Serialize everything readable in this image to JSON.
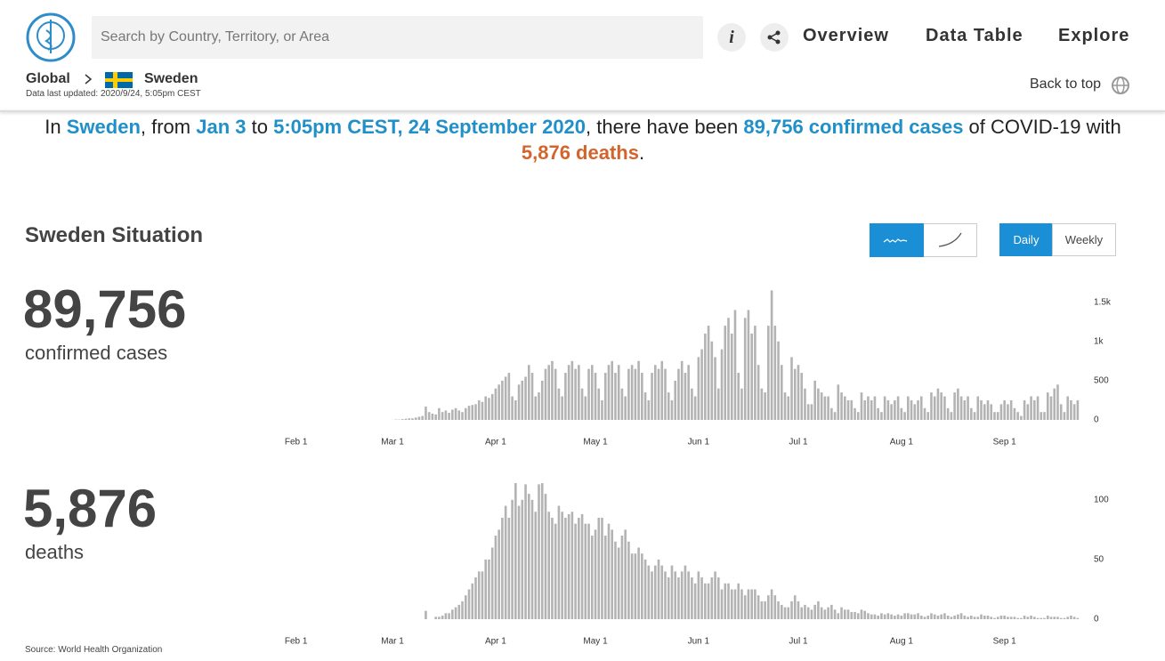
{
  "header": {
    "search_placeholder": "Search by Country, Territory, or Area",
    "nav": [
      "Overview",
      "Data Table",
      "Explore"
    ],
    "breadcrumb": [
      "Global",
      "Sweden"
    ],
    "updated": "Data last updated: 2020/9/24, 5:05pm CEST",
    "back_to_top": "Back to top"
  },
  "headline": [
    "In ",
    "Sweden",
    ", from ",
    "Jan 3",
    " to ",
    "5:05pm CEST, 24 September 2020",
    ", there have been ",
    "89,756 confirmed cases",
    " of COVID-19 with ",
    "5,876 deaths",
    "."
  ],
  "situation": {
    "title": "Sweden Situation",
    "buttons": [
      "Daily",
      "Weekly"
    ],
    "summary": [
      {
        "value": "89,756",
        "label": "confirmed cases"
      },
      {
        "value": "5,876",
        "label": "deaths"
      }
    ],
    "source": "Source: World Health Organization"
  },
  "chart_data": [
    {
      "type": "bar",
      "color": "#b3b3b3",
      "ylim": [
        0,
        1700
      ],
      "yticks": [
        0,
        500,
        {
          "value": 1000,
          "label": "1k"
        },
        {
          "value": 1500,
          "label": "1.5k"
        }
      ],
      "categories": [
        null,
        null,
        null,
        null,
        null,
        "Feb 1",
        null,
        null,
        null,
        null,
        null,
        null,
        null,
        null,
        null,
        null,
        null,
        null,
        null,
        null,
        null,
        null,
        null,
        null,
        null,
        null,
        null,
        null,
        null,
        null,
        null,
        null,
        null,
        null,
        "Mar 1",
        null,
        null,
        null,
        null,
        null,
        null,
        null,
        null,
        null,
        null,
        null,
        null,
        null,
        null,
        null,
        null,
        null,
        null,
        null,
        null,
        null,
        null,
        null,
        null,
        null,
        null,
        null,
        null,
        null,
        null,
        "Apr 1",
        null,
        null,
        null,
        null,
        null,
        null,
        null,
        null,
        null,
        null,
        null,
        null,
        null,
        null,
        null,
        null,
        null,
        null,
        null,
        null,
        null,
        null,
        null,
        null,
        null,
        null,
        null,
        null,
        null,
        "May 1",
        null,
        null,
        null,
        null,
        null,
        null,
        null,
        null,
        null,
        null,
        null,
        null,
        null,
        null,
        null,
        null,
        null,
        null,
        null,
        null,
        null,
        null,
        null,
        null,
        null,
        null,
        null,
        null,
        null,
        null,
        "Jun 1",
        null,
        null,
        null,
        null,
        null,
        null,
        null,
        null,
        null,
        null,
        null,
        null,
        null,
        null,
        null,
        null,
        null,
        null,
        null,
        null,
        null,
        null,
        null,
        null,
        null,
        null,
        null,
        null,
        null,
        "Jul 1",
        null,
        null,
        null,
        null,
        null,
        null,
        null,
        null,
        null,
        null,
        null,
        null,
        null,
        null,
        null,
        null,
        null,
        null,
        null,
        null,
        null,
        null,
        null,
        null,
        null,
        null,
        null,
        null,
        null,
        null,
        "Aug 1",
        null,
        null,
        null,
        null,
        null,
        null,
        null,
        null,
        null,
        null,
        null,
        null,
        null,
        null,
        null,
        null,
        null,
        null,
        null,
        null,
        null,
        null,
        null,
        null,
        null,
        null,
        null,
        null,
        null,
        null,
        "Sep 1",
        null,
        null,
        null,
        null,
        null,
        null,
        null,
        null,
        null,
        null,
        null,
        null,
        null,
        null,
        null,
        null,
        null,
        null,
        null,
        null,
        null,
        null
      ],
      "values": [
        0,
        0,
        0,
        0,
        0,
        0,
        0,
        0,
        0,
        0,
        0,
        0,
        0,
        0,
        0,
        0,
        0,
        0,
        0,
        0,
        0,
        0,
        0,
        0,
        0,
        0,
        0,
        0,
        0,
        0,
        0,
        0,
        0,
        0,
        1,
        5,
        5,
        10,
        15,
        20,
        20,
        30,
        40,
        50,
        170,
        100,
        80,
        70,
        150,
        100,
        120,
        90,
        130,
        150,
        120,
        100,
        150,
        180,
        190,
        200,
        250,
        230,
        300,
        280,
        330,
        400,
        450,
        500,
        550,
        600,
        300,
        250,
        450,
        500,
        550,
        700,
        600,
        300,
        350,
        500,
        650,
        700,
        750,
        650,
        400,
        300,
        600,
        700,
        750,
        650,
        700,
        400,
        300,
        650,
        700,
        600,
        400,
        250,
        600,
        700,
        750,
        600,
        700,
        400,
        300,
        650,
        700,
        650,
        750,
        600,
        350,
        250,
        600,
        700,
        650,
        750,
        650,
        350,
        250,
        500,
        650,
        750,
        600,
        700,
        400,
        300,
        800,
        900,
        1100,
        1200,
        1000,
        800,
        400,
        900,
        1200,
        1300,
        1100,
        1400,
        600,
        400,
        1300,
        1400,
        1100,
        1200,
        700,
        400,
        350,
        1200,
        1650,
        1200,
        1000,
        700,
        350,
        300,
        800,
        650,
        700,
        600,
        400,
        200,
        200,
        500,
        400,
        350,
        300,
        300,
        150,
        100,
        450,
        350,
        300,
        250,
        250,
        150,
        100,
        350,
        250,
        300,
        250,
        300,
        150,
        100,
        300,
        250,
        200,
        250,
        300,
        150,
        100,
        300,
        250,
        200,
        250,
        300,
        150,
        100,
        350,
        300,
        400,
        350,
        300,
        150,
        100,
        350,
        400,
        300,
        250,
        300,
        150,
        100,
        300,
        250,
        200,
        250,
        200,
        100,
        100,
        200,
        250,
        200,
        250,
        150,
        100,
        50,
        250,
        200,
        300,
        250,
        300,
        100,
        100,
        350,
        300,
        400,
        450,
        200,
        100,
        300,
        250,
        200,
        250
      ]
    },
    {
      "type": "bar",
      "color": "#b3b3b3",
      "ylim": [
        0,
        120
      ],
      "yticks": [
        0,
        50,
        100
      ],
      "categories": [
        null,
        null,
        null,
        null,
        null,
        "Feb 1",
        null,
        null,
        null,
        null,
        null,
        null,
        null,
        null,
        null,
        null,
        null,
        null,
        null,
        null,
        null,
        null,
        null,
        null,
        null,
        null,
        null,
        null,
        null,
        null,
        null,
        null,
        null,
        null,
        "Mar 1",
        null,
        null,
        null,
        null,
        null,
        null,
        null,
        null,
        null,
        null,
        null,
        null,
        null,
        null,
        null,
        null,
        null,
        null,
        null,
        null,
        null,
        null,
        null,
        null,
        null,
        null,
        null,
        null,
        null,
        null,
        "Apr 1",
        null,
        null,
        null,
        null,
        null,
        null,
        null,
        null,
        null,
        null,
        null,
        null,
        null,
        null,
        null,
        null,
        null,
        null,
        null,
        null,
        null,
        null,
        null,
        null,
        null,
        null,
        null,
        null,
        null,
        "May 1",
        null,
        null,
        null,
        null,
        null,
        null,
        null,
        null,
        null,
        null,
        null,
        null,
        null,
        null,
        null,
        null,
        null,
        null,
        null,
        null,
        null,
        null,
        null,
        null,
        null,
        null,
        null,
        null,
        null,
        null,
        "Jun 1",
        null,
        null,
        null,
        null,
        null,
        null,
        null,
        null,
        null,
        null,
        null,
        null,
        null,
        null,
        null,
        null,
        null,
        null,
        null,
        null,
        null,
        null,
        null,
        null,
        null,
        null,
        null,
        null,
        null,
        "Jul 1",
        null,
        null,
        null,
        null,
        null,
        null,
        null,
        null,
        null,
        null,
        null,
        null,
        null,
        null,
        null,
        null,
        null,
        null,
        null,
        null,
        null,
        null,
        null,
        null,
        null,
        null,
        null,
        null,
        null,
        null,
        "Aug 1",
        null,
        null,
        null,
        null,
        null,
        null,
        null,
        null,
        null,
        null,
        null,
        null,
        null,
        null,
        null,
        null,
        null,
        null,
        null,
        null,
        null,
        null,
        null,
        null,
        null,
        null,
        null,
        null,
        null,
        null,
        "Sep 1",
        null,
        null,
        null,
        null,
        null,
        null,
        null,
        null,
        null,
        null,
        null,
        null,
        null,
        null,
        null,
        null,
        null,
        null,
        null,
        null,
        null,
        null
      ],
      "values": [
        0,
        0,
        0,
        0,
        0,
        0,
        0,
        0,
        0,
        0,
        0,
        0,
        0,
        0,
        0,
        0,
        0,
        0,
        0,
        0,
        0,
        0,
        0,
        0,
        0,
        0,
        0,
        0,
        0,
        0,
        0,
        0,
        0,
        0,
        0,
        0,
        0,
        0,
        0,
        0,
        0,
        0,
        0,
        0,
        7,
        0,
        0,
        2,
        2,
        3,
        5,
        5,
        8,
        10,
        12,
        15,
        20,
        25,
        30,
        35,
        40,
        40,
        50,
        50,
        60,
        70,
        75,
        85,
        95,
        85,
        100,
        114,
        95,
        100,
        113,
        105,
        100,
        90,
        113,
        114,
        105,
        90,
        85,
        80,
        95,
        90,
        85,
        88,
        90,
        80,
        85,
        88,
        80,
        80,
        70,
        75,
        85,
        85,
        70,
        80,
        75,
        65,
        60,
        70,
        75,
        65,
        55,
        55,
        60,
        55,
        50,
        45,
        40,
        45,
        50,
        45,
        40,
        35,
        45,
        40,
        35,
        40,
        45,
        40,
        35,
        30,
        40,
        35,
        30,
        30,
        35,
        40,
        35,
        25,
        30,
        30,
        25,
        25,
        30,
        25,
        20,
        25,
        25,
        25,
        20,
        15,
        15,
        20,
        25,
        20,
        15,
        12,
        10,
        10,
        15,
        20,
        15,
        10,
        12,
        10,
        8,
        12,
        15,
        10,
        8,
        10,
        12,
        8,
        5,
        10,
        8,
        8,
        6,
        6,
        5,
        8,
        7,
        5,
        4,
        4,
        3,
        5,
        4,
        5,
        4,
        3,
        4,
        3,
        5,
        5,
        4,
        4,
        5,
        3,
        2,
        3,
        5,
        4,
        3,
        4,
        5,
        3,
        2,
        3,
        4,
        5,
        3,
        2,
        3,
        2,
        2,
        4,
        3,
        3,
        2,
        1,
        2,
        3,
        3,
        2,
        2,
        2,
        1,
        1,
        3,
        2,
        3,
        2,
        1,
        1,
        1,
        3,
        2,
        2,
        2,
        1,
        1,
        2,
        3,
        2,
        1
      ]
    }
  ]
}
